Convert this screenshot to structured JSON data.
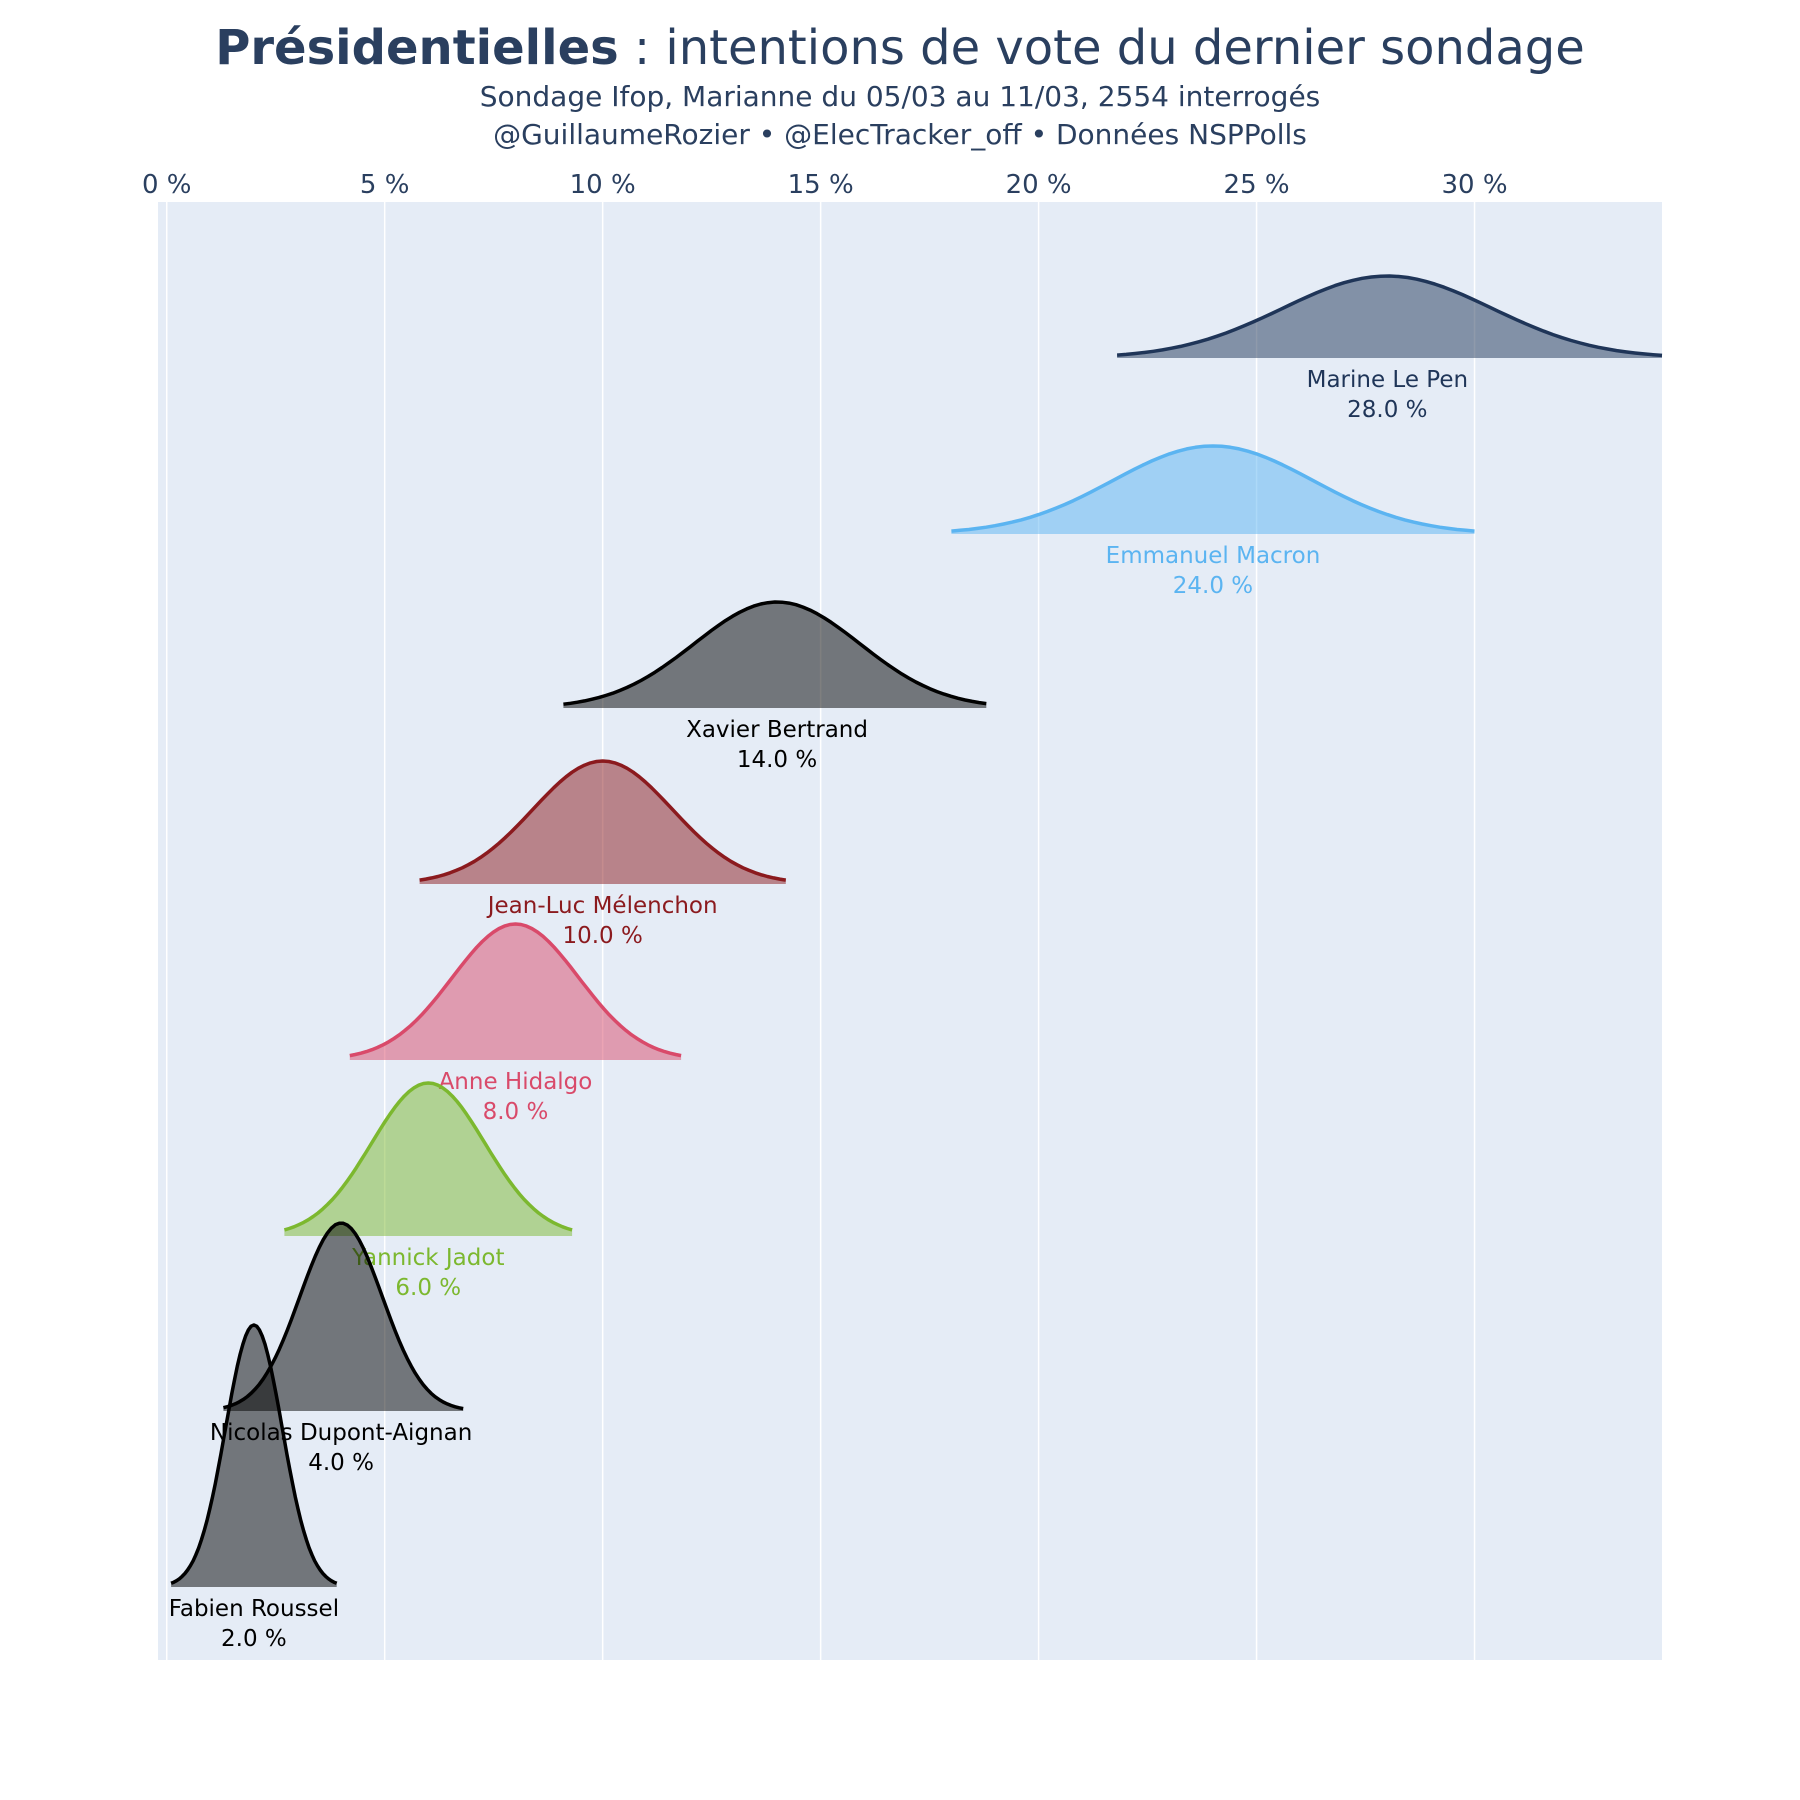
{
  "title": {
    "bold": "Présidentielles",
    "rest": " : intentions de vote du dernier sondage"
  },
  "subtitle_line1": "Sondage Ifop, Marianne du 05/03 au 11/03, 2554 interrogés",
  "subtitle_line2": "@GuillaumeRozier • @ElecTracker_off • Données NSPPolls",
  "colors": {
    "plot_bg": "#e5ecf6",
    "grid": "#ffffff",
    "text": "#2a3f5f"
  },
  "chart_data": {
    "type": "area",
    "xlabel": "",
    "ylabel": "",
    "xlim": [
      -0.2,
      34.3
    ],
    "x_ticks": [
      {
        "value": 0,
        "label": "0 %"
      },
      {
        "value": 5,
        "label": "5 %"
      },
      {
        "value": 10,
        "label": "10 %"
      },
      {
        "value": 15,
        "label": "15 %"
      },
      {
        "value": 20,
        "label": "20 %"
      },
      {
        "value": 25,
        "label": "25 %"
      },
      {
        "value": 30,
        "label": "30 %"
      }
    ],
    "x_axis_position": "top",
    "grid": true,
    "legend": "none",
    "series": [
      {
        "name": "Marine Le Pen",
        "value": 28.0,
        "value_label": "28.0 %",
        "range": [
          21.8,
          34.3
        ],
        "sd": 2.4,
        "color": "#1f3558",
        "fill": "rgba(31,53,88,0.5)"
      },
      {
        "name": "Emmanuel Macron",
        "value": 24.0,
        "value_label": "24.0 %",
        "range": [
          18.0,
          30.0
        ],
        "sd": 2.3,
        "color": "#5bb4f1",
        "fill": "rgba(91,180,241,0.5)"
      },
      {
        "name": "Xavier Bertrand",
        "value": 14.0,
        "value_label": "14.0 %",
        "range": [
          9.1,
          18.8
        ],
        "sd": 1.9,
        "color": "#000000",
        "fill": "rgba(0,0,0,0.5)"
      },
      {
        "name": "Jean-Luc Mélenchon",
        "value": 10.0,
        "value_label": "10.0 %",
        "range": [
          5.8,
          14.2
        ],
        "sd": 1.6,
        "color": "#8b1a1e",
        "fill": "rgba(139,26,30,0.5)"
      },
      {
        "name": "Anne Hidalgo",
        "value": 8.0,
        "value_label": "8.0 %",
        "range": [
          4.2,
          11.8
        ],
        "sd": 1.45,
        "color": "#d94a6a",
        "fill": "rgba(217,74,106,0.5)"
      },
      {
        "name": "Yannick Jadot",
        "value": 6.0,
        "value_label": "6.0 %",
        "range": [
          2.7,
          9.3
        ],
        "sd": 1.3,
        "color": "#7cb82f",
        "fill": "rgba(124,184,47,0.5)"
      },
      {
        "name": "Nicolas Dupont-Aignan",
        "value": 4.0,
        "value_label": "4.0 %",
        "range": [
          1.3,
          6.8
        ],
        "sd": 0.95,
        "color": "#000000",
        "fill": "rgba(0,0,0,0.5)"
      },
      {
        "name": "Fabien Roussel",
        "value": 2.0,
        "value_label": "2.0 %",
        "range": [
          0.1,
          3.9
        ],
        "sd": 0.65,
        "color": "#000000",
        "fill": "rgba(0,0,0,0.5)"
      }
    ]
  }
}
